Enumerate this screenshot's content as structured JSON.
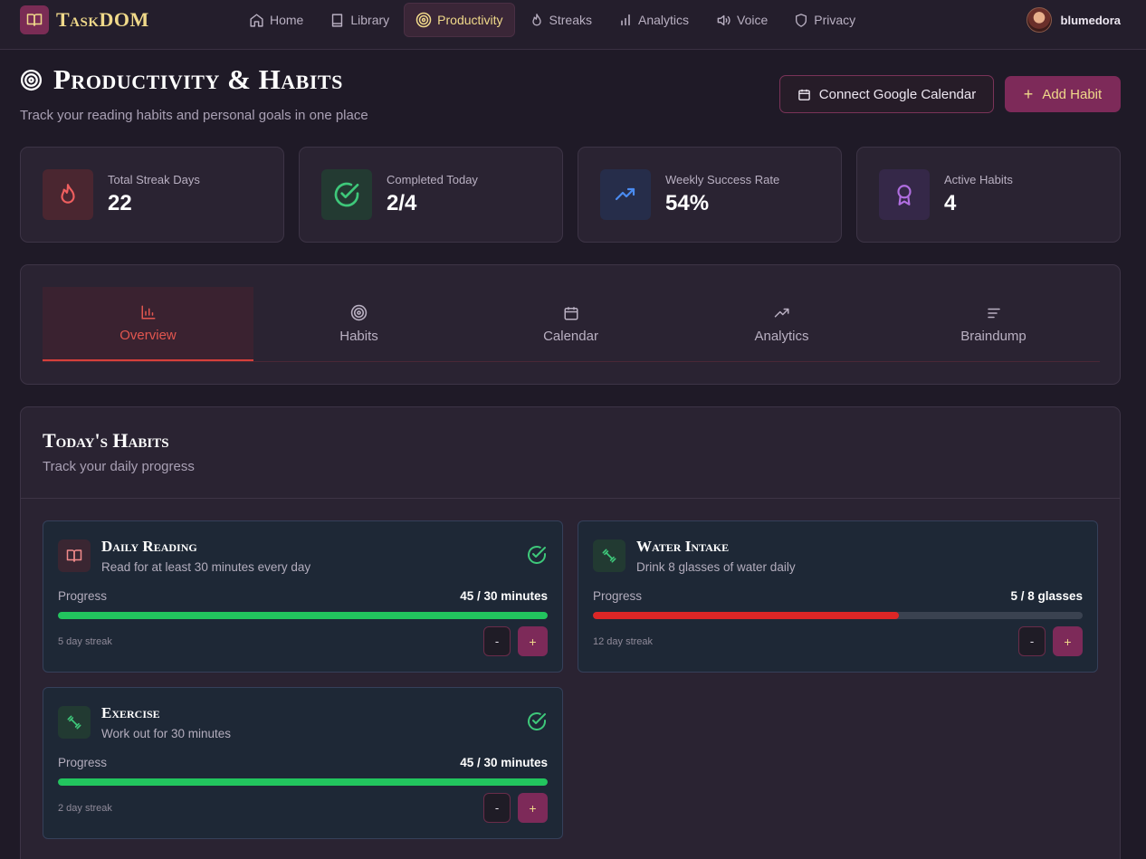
{
  "nav": {
    "brand": "TaskDOM",
    "items": [
      {
        "label": "Home",
        "icon": "home-icon"
      },
      {
        "label": "Library",
        "icon": "book-icon"
      },
      {
        "label": "Productivity",
        "icon": "target-icon"
      },
      {
        "label": "Streaks",
        "icon": "flame-icon"
      },
      {
        "label": "Analytics",
        "icon": "bar-chart-icon"
      },
      {
        "label": "Voice",
        "icon": "speaker-icon"
      },
      {
        "label": "Privacy",
        "icon": "shield-icon"
      }
    ],
    "active": "Productivity",
    "user": "blumedora"
  },
  "header": {
    "title": "Productivity & Habits",
    "subtitle": "Track your reading habits and personal goals in one place",
    "connect_label": "Connect Google Calendar",
    "add_label": "Add Habit"
  },
  "stats": [
    {
      "label": "Total Streak Days",
      "value": "22",
      "icon": "flame-icon",
      "color": "#ef5f5f"
    },
    {
      "label": "Completed Today",
      "value": "2/4",
      "icon": "check-circle-icon",
      "color": "#3ec87a"
    },
    {
      "label": "Weekly Success Rate",
      "value": "54%",
      "icon": "trending-up-icon",
      "color": "#4a8bf0"
    },
    {
      "label": "Active Habits",
      "value": "4",
      "icon": "award-icon",
      "color": "#b06ee0"
    }
  ],
  "tabs": [
    {
      "label": "Overview",
      "icon": "bar-chart-icon"
    },
    {
      "label": "Habits",
      "icon": "target-icon"
    },
    {
      "label": "Calendar",
      "icon": "calendar-icon"
    },
    {
      "label": "Analytics",
      "icon": "trending-up-icon"
    },
    {
      "label": "Braindump",
      "icon": "text-lines-icon"
    }
  ],
  "active_tab": "Overview",
  "panel": {
    "title": "Today's Habits",
    "subtitle": "Track your daily progress"
  },
  "progress_label": "Progress",
  "habits": [
    {
      "name": "Daily Reading",
      "description": "Read for at least 30 minutes every day",
      "icon": "book-icon",
      "progress_text": "45 / 30 minutes",
      "progress": 1.0,
      "bar_color": "#22c55e",
      "streak": "5 day streak",
      "completed": true
    },
    {
      "name": "Water Intake",
      "description": "Drink 8 glasses of water daily",
      "icon": "dumbbell-icon",
      "progress_text": "5 / 8 glasses",
      "progress": 0.625,
      "bar_color": "#dc2626",
      "streak": "12 day streak",
      "completed": false
    },
    {
      "name": "Exercise",
      "description": "Work out for 30 minutes",
      "icon": "dumbbell-icon",
      "progress_text": "45 / 30 minutes",
      "progress": 1.0,
      "bar_color": "#22c55e",
      "streak": "2 day streak",
      "completed": true
    }
  ],
  "minus_label": "-",
  "plus_label": "+"
}
